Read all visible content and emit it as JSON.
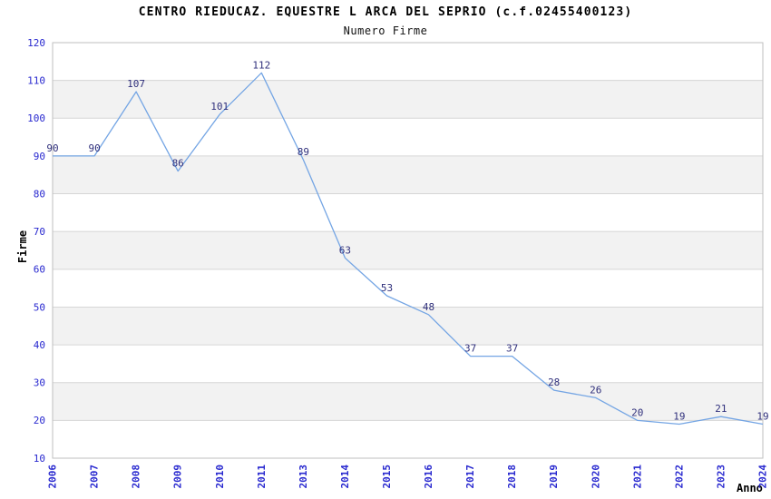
{
  "chart_data": {
    "type": "line",
    "title": "CENTRO RIEDUCAZ. EQUESTRE L ARCA DEL SEPRIO (c.f.02455400123)",
    "subtitle": "Numero Firme",
    "xlabel": "Anno",
    "ylabel": "Firme",
    "categories": [
      "2006",
      "2007",
      "2008",
      "2009",
      "2010",
      "2011",
      "2013",
      "2014",
      "2015",
      "2016",
      "2017",
      "2018",
      "2019",
      "2020",
      "2021",
      "2022",
      "2023",
      "2024"
    ],
    "values": [
      90,
      90,
      107,
      86,
      101,
      112,
      89,
      63,
      53,
      48,
      37,
      37,
      28,
      26,
      20,
      19,
      21,
      19
    ],
    "ylim": [
      10,
      120
    ],
    "ytick_step": 10,
    "grid": "horizontal-alternating-bands",
    "legend": "none",
    "markers": "none",
    "x_tick_rotation": -90,
    "colors": {
      "line": "#74a5e4",
      "axis_tick_label": "#2828cf",
      "data_label": "#30307c",
      "band_fill": "#f2f2f2",
      "gridline": "#d6d6d6",
      "plot_border": "#bfbfbf",
      "title": "#000000",
      "background": "#ffffff"
    }
  }
}
